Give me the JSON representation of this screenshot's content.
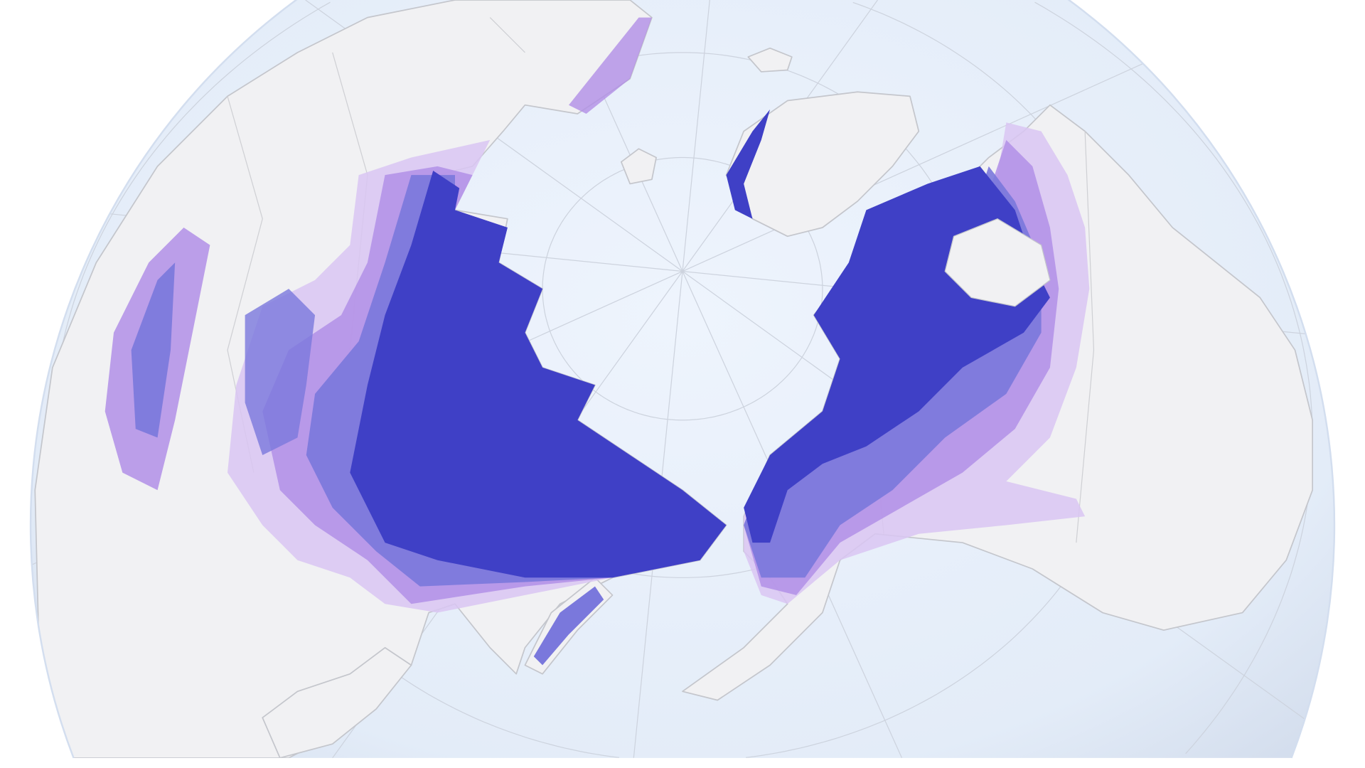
{
  "map": {
    "projection": "orthographic-north-polar",
    "colors": {
      "ocean": "#e6eefa",
      "ocean_edge": "#d3deef",
      "land": "#f1f1f3",
      "coastline": "#c4c6cc",
      "graticule": "#cdd3de",
      "permafrost_levels": [
        "#3f40c6",
        "#7a78dc",
        "#b18fe6",
        "#d9c6f2"
      ]
    }
  }
}
